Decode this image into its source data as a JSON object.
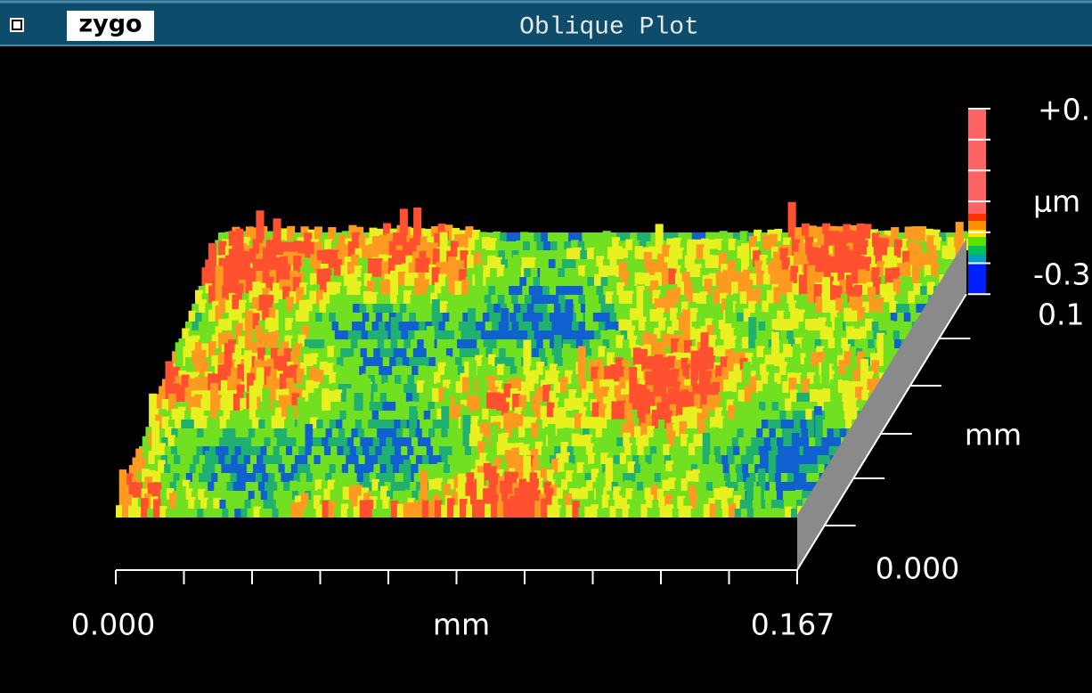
{
  "window": {
    "logo": "zygo",
    "title": "Oblique Plot"
  },
  "plot": {
    "color_bar_top": "+0.",
    "color_bar_unit": "µm",
    "color_bar_bottom": "-0.3",
    "extra_label": "0.1",
    "x_axis": {
      "start": "0.000",
      "unit": "mm",
      "end": "0.167"
    },
    "y_axis": {
      "start": "0.000",
      "unit": "mm"
    }
  }
}
